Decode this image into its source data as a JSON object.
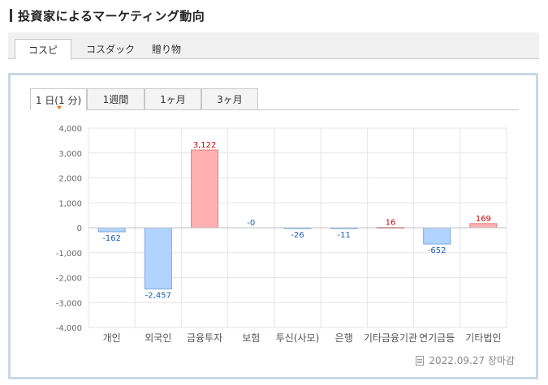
{
  "page": {
    "title": "投資家によるマーケティング動向"
  },
  "market_tabs": [
    {
      "label": "コスピ",
      "active": true
    },
    {
      "label": "コスダック",
      "active": false
    },
    {
      "label": "贈り物",
      "active": false
    }
  ],
  "period_tabs": [
    {
      "label": "1 日(1 分)",
      "active": true
    },
    {
      "label": "1週間",
      "active": false
    },
    {
      "label": "1ヶ月",
      "active": false
    },
    {
      "label": "3ヶ月",
      "active": false
    }
  ],
  "footer": {
    "date_text": "2022.09.27 장마감"
  },
  "colors": {
    "positive_fill": "#ffb0b0",
    "positive_stroke": "#e08080",
    "positive_label": "#cc0000",
    "negative_fill": "#b0d4ff",
    "negative_stroke": "#7aa8e0",
    "negative_label": "#1a5fb4",
    "grid": "#e6e6e6"
  },
  "chart_data": {
    "type": "bar",
    "categories": [
      "개인",
      "외국인",
      "금융투자",
      "보험",
      "투신(사모)",
      "은행",
      "기타금융기관",
      "연기금등",
      "기타법인"
    ],
    "values": [
      -162,
      -2457,
      3122,
      0,
      -26,
      -11,
      16,
      -652,
      169
    ],
    "value_labels": [
      "-162",
      "-2,457",
      "3,122",
      "-0",
      "-26",
      "-11",
      "16",
      "-652",
      "169"
    ],
    "ylim": [
      -4000,
      4000
    ],
    "yticks": [
      4000,
      3000,
      2000,
      1000,
      0,
      -1000,
      -2000,
      -3000,
      -4000
    ],
    "ytick_labels": [
      "4,000",
      "3,000",
      "2,000",
      "1,000",
      "0",
      "-1,000",
      "-2,000",
      "-3,000",
      "-4,000"
    ],
    "grid": true
  }
}
